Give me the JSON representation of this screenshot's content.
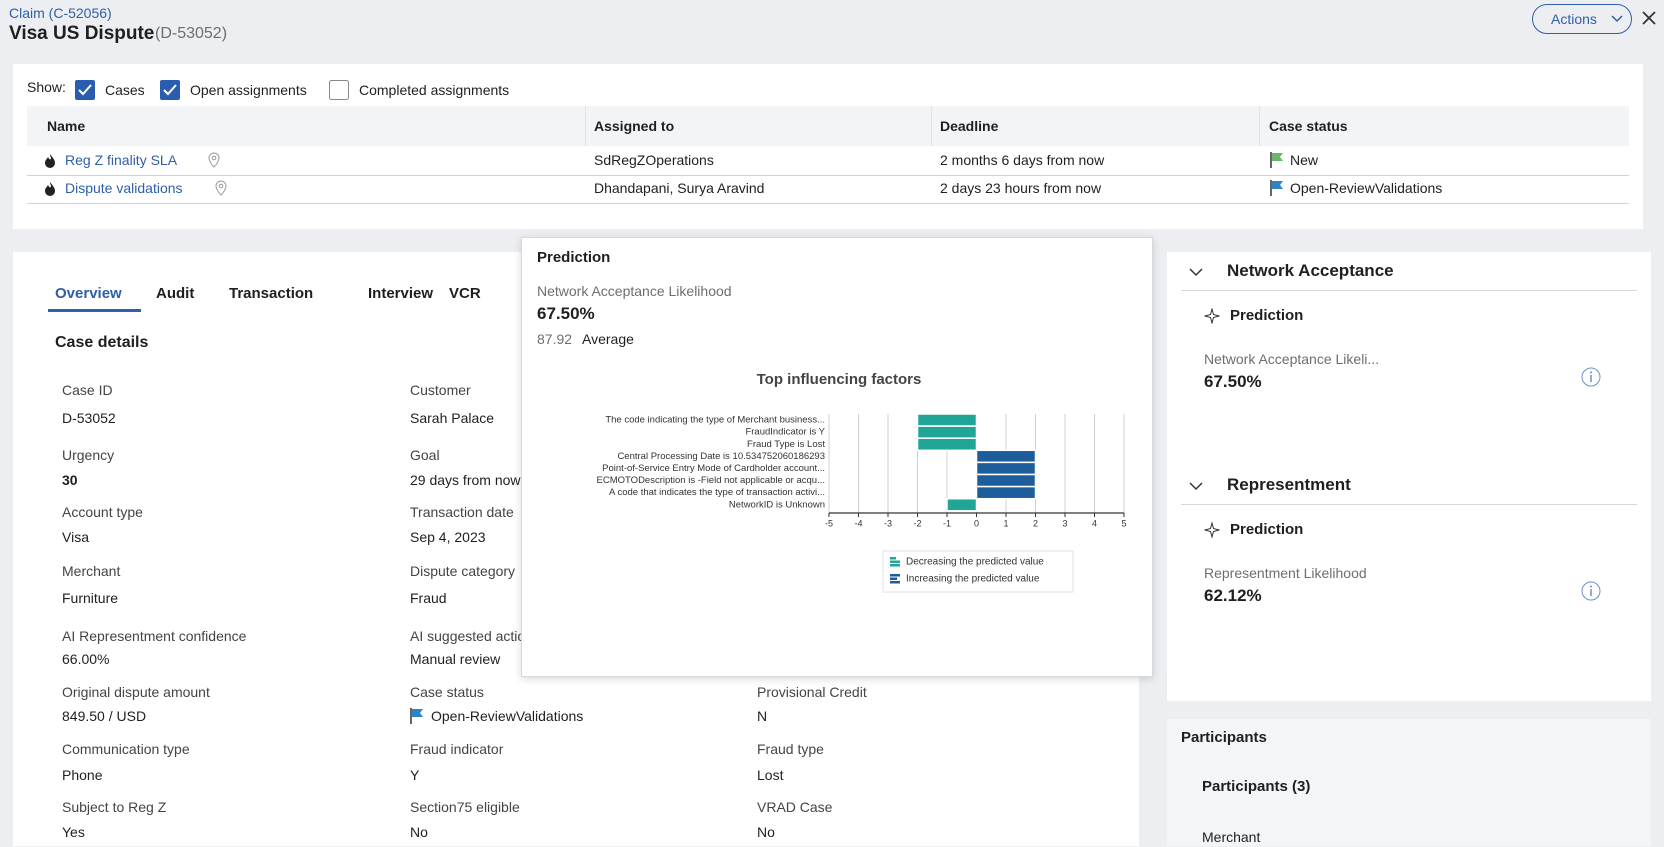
{
  "header": {
    "breadcrumb": "Claim (C-52056)",
    "title": "Visa US Dispute",
    "case_id": "(D-53052)",
    "actions": "Actions"
  },
  "assignments": {
    "show_label": "Show:",
    "filters": [
      {
        "label": "Cases",
        "checked": true
      },
      {
        "label": "Open assignments",
        "checked": true
      },
      {
        "label": "Completed assignments",
        "checked": false
      }
    ],
    "columns": [
      "Name",
      "Assigned to",
      "Deadline",
      "Case status"
    ],
    "rows": [
      [
        "Reg Z finality SLA",
        "SdRegZOperations",
        "2 months 6 days from now",
        "New"
      ],
      [
        "Dispute validations",
        "Dhandapani, Surya Aravind",
        "2 days 23 hours from now",
        "Open-ReviewValidations"
      ]
    ]
  },
  "tabs": [
    "Overview",
    "Audit",
    "Transaction",
    "Interview",
    "VCR"
  ],
  "case_details": {
    "title": "Case details",
    "columns": [
      [
        {
          "label": "Case ID",
          "value": "D-53052"
        },
        {
          "label": "Urgency",
          "value": "30"
        },
        {
          "label": "Account type",
          "value": "Visa"
        },
        {
          "label": "Merchant",
          "value": "Furniture"
        },
        {
          "label": "AI Representment confidence",
          "value": "66.00%"
        },
        {
          "label": "Original dispute amount",
          "value": "849.50 / USD"
        },
        {
          "label": "Communication type",
          "value": "Phone"
        },
        {
          "label": "Subject to Reg Z",
          "value": "Yes"
        }
      ],
      [
        {
          "label": "Customer",
          "value": "Sarah Palace"
        },
        {
          "label": "Goal",
          "value": "29 days from now"
        },
        {
          "label": "Transaction date",
          "value": "Sep 4, 2023"
        },
        {
          "label": "Dispute category",
          "value": "Fraud"
        },
        {
          "label": "AI suggested action",
          "value": "Manual review"
        },
        {
          "label": "Case status",
          "value": "Open-ReviewValidations"
        },
        {
          "label": "Fraud indicator",
          "value": "Y"
        },
        {
          "label": "Section75 eligible",
          "value": "No"
        }
      ],
      [
        {
          "label": "Provisional Credit",
          "value": "N"
        },
        {
          "label": "Fraud type",
          "value": "Lost"
        },
        {
          "label": "VRAD Case",
          "value": "No"
        }
      ]
    ]
  },
  "prediction_popup": {
    "title": "Prediction",
    "metric": "Network Acceptance Likelihood",
    "value": "67.50%",
    "average_value": "87.92",
    "average_label": "Average",
    "chart": {
      "type": "bar",
      "orientation": "horizontal",
      "title": "Top influencing factors",
      "categories": [
        "The code indicating the type of Merchant business...",
        "FraudIndicator is Y",
        "Fraud Type is Lost",
        "Central Processing Date is 10.534752060186293",
        "Point-of-Service Entry Mode of Cardholder account...",
        "ECMOTODescription is -Field not applicable or acqu...",
        "A code that indicates the type of transaction activi...",
        "NetworkID is Unknown"
      ],
      "values": [
        -2,
        -2,
        -2,
        2,
        2,
        2,
        2,
        -1
      ],
      "xlim": [
        -5,
        5
      ],
      "xticks": [
        -5,
        -4,
        -3,
        -2,
        -1,
        0,
        1,
        2,
        3,
        4,
        5
      ],
      "grid": true,
      "legend": [
        {
          "name": "Decreasing the predicted value",
          "color": "#20a597"
        },
        {
          "name": "Increasing the predicted value",
          "color": "#1d5d9b"
        }
      ]
    }
  },
  "side_panels": [
    {
      "title": "Network Acceptance",
      "subtitle": "Prediction",
      "metric": "Network Acceptance Likeli...",
      "value": "67.50%"
    },
    {
      "title": "Representment",
      "subtitle": "Prediction",
      "metric": "Representment Likelihood",
      "value": "62.12%"
    }
  ],
  "participants": {
    "title": "Participants",
    "count_label": "Participants (3)",
    "first": "Merchant"
  }
}
